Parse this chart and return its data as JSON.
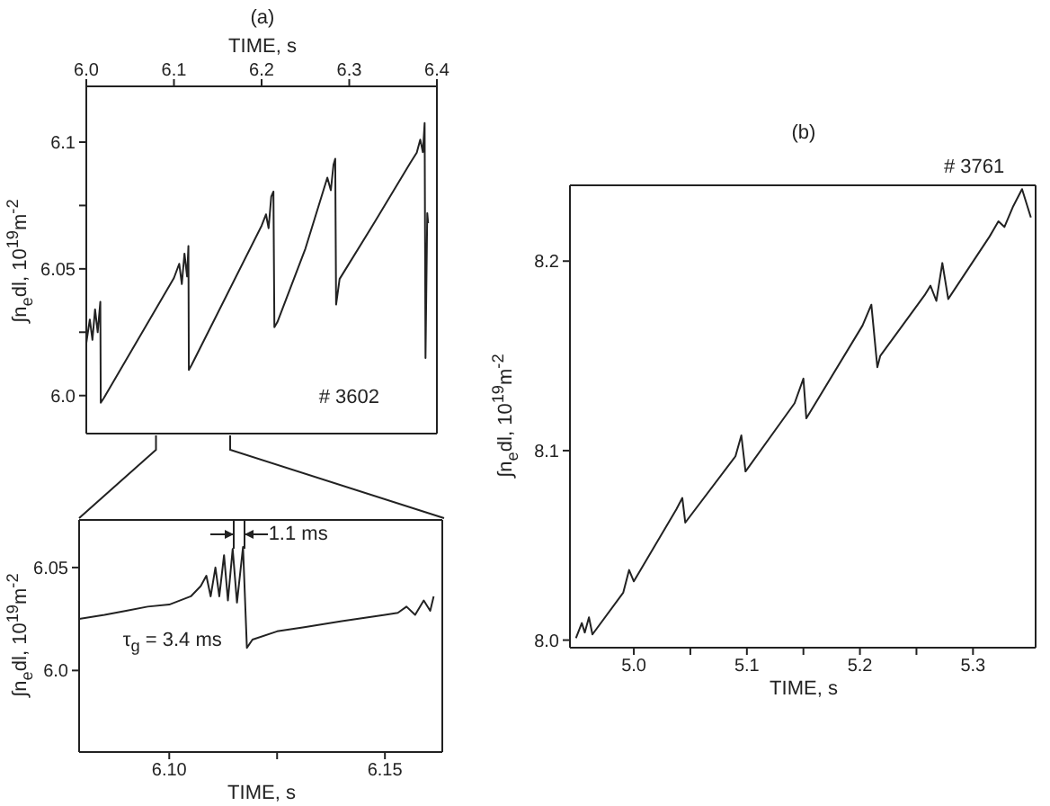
{
  "chart_data": [
    {
      "type": "line",
      "title": "(a)",
      "xlabel": "TIME, s",
      "ylabel": "∫n$_{e}$dl, 10$^{19}$m$^{-2}$",
      "annotations": [
        "# 3602"
      ],
      "xlim": [
        6.0,
        6.4
      ],
      "xticks": [
        {
          "value": 6.0,
          "label": "6.0"
        },
        6.1,
        6.2,
        6.3,
        6.4
      ],
      "ylim": [
        5.985,
        6.122
      ],
      "yticks": [
        {
          "value": 6.0,
          "label": "6.0"
        },
        {
          "value": 6.025,
          "label": null
        },
        6.05,
        {
          "value": 6.075,
          "label": null
        },
        6.1
      ],
      "x": [
        6.0,
        6.004,
        6.007,
        6.01,
        6.013,
        6.016,
        6.0165,
        6.02,
        6.06,
        6.1,
        6.106,
        6.109,
        6.112,
        6.115,
        6.1165,
        6.117,
        6.12,
        6.16,
        6.2,
        6.205,
        6.208,
        6.211,
        6.2135,
        6.2146,
        6.218,
        6.25,
        6.275,
        6.279,
        6.282,
        6.284,
        6.285,
        6.289,
        6.33,
        6.37,
        6.377,
        6.381,
        6.384,
        6.386,
        6.387,
        6.389,
        6.39
      ],
      "series": [
        {
          "color": "#222222",
          "values": [
            6.0207,
            6.03,
            6.022,
            6.034,
            6.025,
            6.037,
            5.9972,
            5.999,
            6.0227,
            6.0464,
            6.052,
            6.044,
            6.056,
            6.047,
            6.059,
            6.0101,
            6.012,
            6.0395,
            6.067,
            6.0715,
            6.066,
            6.0785,
            6.0805,
            6.027,
            6.029,
            6.058,
            6.086,
            6.081,
            6.091,
            6.0934,
            6.0359,
            6.046,
            6.069,
            6.092,
            6.0958,
            6.101,
            6.096,
            6.1075,
            6.0148,
            6.072,
            6.068
          ]
        }
      ]
    },
    {
      "type": "line",
      "xlabel": "TIME, s",
      "ylabel": "∫n$_{e}$dl, 10$^{19}$m$^{-2}$",
      "annotations": [
        "1.1 ms",
        "τ$_{g}$ = 3.4 ms"
      ],
      "xlim": [
        6.0791,
        6.1633
      ],
      "xticks": [
        {
          "value": 6.1,
          "label": "6.10"
        },
        {
          "value": 6.125,
          "label": null
        },
        6.15
      ],
      "ylim": [
        5.9604,
        6.0731
      ],
      "yticks": [
        {
          "value": 6.0,
          "label": "6.0"
        },
        6.05
      ],
      "x": [
        6.0791,
        6.085,
        6.09,
        6.095,
        6.1,
        6.105,
        6.1073,
        6.1086,
        6.1096,
        6.1107,
        6.1116,
        6.1127,
        6.1136,
        6.1147,
        6.1157,
        6.1171,
        6.118,
        6.1193,
        6.125,
        6.1313,
        6.14,
        6.15,
        6.153,
        6.155,
        6.157,
        6.159,
        6.1605,
        6.1613
      ],
      "series": [
        {
          "color": "#222222",
          "values": [
            6.025,
            6.027,
            6.029,
            6.031,
            6.032,
            6.036,
            6.041,
            6.046,
            6.036,
            6.05,
            6.036,
            6.056,
            6.034,
            6.059,
            6.033,
            6.06,
            6.011,
            6.015,
            6.019,
            6.021,
            6.024,
            6.027,
            6.028,
            6.031,
            6.027,
            6.034,
            6.029,
            6.036
          ]
        }
      ]
    },
    {
      "type": "line",
      "title": "(b)",
      "xlabel": "TIME, s",
      "ylabel": "∫n$_{e}$dl, 10$^{19}$m$^{-2}$",
      "annotations": [
        "# 3761"
      ],
      "xlim": [
        4.9435,
        5.3554
      ],
      "xticks": [
        {
          "value": 5.0,
          "label": "5.0"
        },
        {
          "value": 5.05,
          "label": null
        },
        5.1,
        {
          "value": 5.15,
          "label": null
        },
        5.2,
        {
          "value": 5.25,
          "label": null
        },
        5.3
      ],
      "ylim": [
        7.996,
        8.24
      ],
      "yticks": [
        {
          "value": 8.0,
          "label": "8.0"
        },
        8.1,
        8.2
      ],
      "x": [
        4.9488,
        4.954,
        4.9566,
        4.9603,
        4.9634,
        4.9906,
        4.9958,
        5.0,
        5.0376,
        5.0429,
        5.0455,
        5.0899,
        5.0951,
        5.0988,
        5.1422,
        5.15,
        5.1526,
        5.2023,
        5.2101,
        5.2154,
        5.218,
        5.2572,
        5.2624,
        5.2676,
        5.2729,
        5.2781,
        5.3147,
        5.3225,
        5.3278,
        5.3356,
        5.3434,
        5.3512
      ],
      "series": [
        {
          "color": "#222222",
          "values": [
            8.001,
            8.009,
            8.004,
            8.012,
            8.003,
            8.025,
            8.037,
            8.031,
            8.069,
            8.075,
            8.062,
            8.097,
            8.108,
            8.089,
            8.125,
            8.138,
            8.117,
            8.166,
            8.177,
            8.144,
            8.15,
            8.182,
            8.187,
            8.179,
            8.199,
            8.18,
            8.213,
            8.221,
            8.218,
            8.229,
            8.238,
            8.223
          ]
        }
      ]
    }
  ]
}
